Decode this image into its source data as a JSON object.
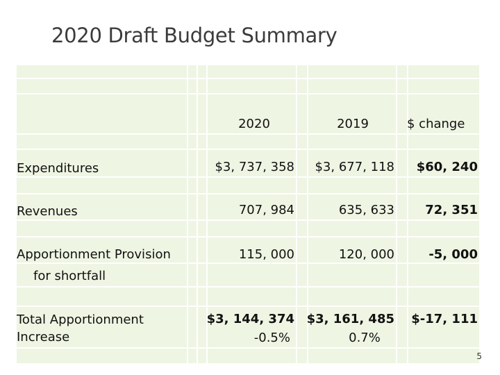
{
  "title": "2020 Draft Budget Summary",
  "headers": {
    "y2020": "2020",
    "y2019": "2019",
    "change": "$  change"
  },
  "rows": [
    {
      "label": "Expenditures",
      "v2020": "$3, 737, 358",
      "v2019": "$3, 677, 118",
      "change": "$60, 240"
    },
    {
      "label": "Revenues",
      "v2020": "707, 984",
      "v2019": "635, 633",
      "change": "72, 351"
    },
    {
      "label": "Apportionment Provision",
      "label2": "for shortfall",
      "v2020": "115, 000",
      "v2019": "120, 000",
      "change": "-5, 000"
    },
    {
      "label": "Total Apportionment",
      "label2": "Increase",
      "v2020": "$3, 144, 374",
      "v2020_pct": "-0.5%",
      "v2019": "$3, 161, 485",
      "v2019_pct": "0.7%",
      "change": "$-17, 111"
    }
  ],
  "page_number": "5"
}
